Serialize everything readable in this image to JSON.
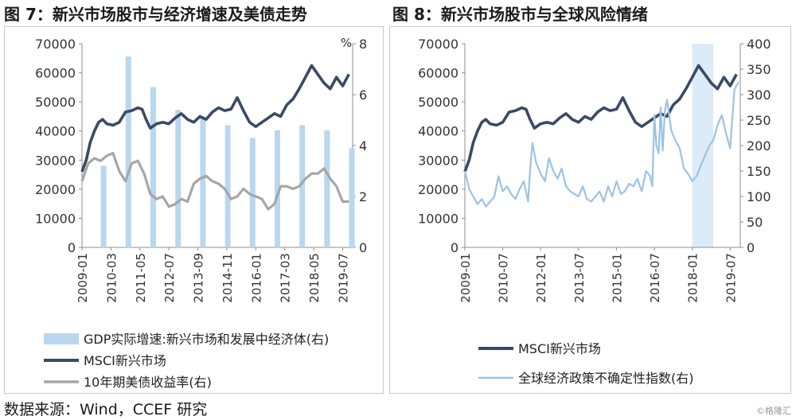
{
  "titles": {
    "fig7": "图 7：新兴市场股市与经济增速及美债走势",
    "fig8": "图 8：新兴市场股市与全球风险情绪"
  },
  "footer": {
    "source": "数据来源：Wind，CCEF 研究",
    "watermark": "©格隆汇"
  },
  "colors": {
    "msci": "#3a4a66",
    "gdp": "#b9d7ef",
    "treasury": "#a6a6a6",
    "epu": "#9cc3e4",
    "shade": "#dcebf8"
  },
  "chart_data": [
    {
      "type": "line",
      "id": "fig7",
      "x_ticks": [
        "2009-01",
        "2010-03",
        "2011-05",
        "2012-07",
        "2013-09",
        "2014-11",
        "2016-01",
        "2017-03",
        "2018-05",
        "2019-07"
      ],
      "y_left": {
        "ticks": [
          "0",
          "10000",
          "20000",
          "30000",
          "40000",
          "50000",
          "60000",
          "70000"
        ],
        "range": [
          0,
          70000
        ]
      },
      "y_right": {
        "unit": "%",
        "ticks": [
          "0",
          "2",
          "4",
          "6",
          "8"
        ],
        "range": [
          0,
          8
        ]
      },
      "series": [
        {
          "name": "GDP实际增速:新兴市场和发展中经济体(右)",
          "kind": "bar",
          "axis": "right",
          "x": [
            2009.87,
            2010.87,
            2011.87,
            2012.87,
            2013.87,
            2014.87,
            2015.87,
            2016.87,
            2017.87,
            2018.87,
            2019.87
          ],
          "y": [
            3.2,
            7.5,
            6.3,
            5.4,
            5.1,
            4.8,
            4.3,
            4.6,
            4.8,
            4.6,
            3.9
          ]
        },
        {
          "name": "MSCI新兴市场",
          "kind": "line",
          "axis": "left",
          "x": [
            2009.0,
            2009.17,
            2009.33,
            2009.5,
            2009.67,
            2009.83,
            2010.0,
            2010.25,
            2010.5,
            2010.75,
            2011.0,
            2011.25,
            2011.42,
            2011.58,
            2011.75,
            2012.0,
            2012.25,
            2012.5,
            2012.75,
            2013.0,
            2013.25,
            2013.5,
            2013.75,
            2014.0,
            2014.25,
            2014.5,
            2014.75,
            2015.0,
            2015.25,
            2015.5,
            2015.75,
            2016.0,
            2016.25,
            2016.5,
            2016.75,
            2017.0,
            2017.25,
            2017.5,
            2017.75,
            2018.0,
            2018.25,
            2018.5,
            2018.75,
            2019.0,
            2019.25,
            2019.5,
            2019.75
          ],
          "y": [
            26000,
            30000,
            36000,
            40000,
            43000,
            44000,
            42500,
            42000,
            43000,
            46500,
            47000,
            48000,
            47500,
            44000,
            41000,
            42500,
            43000,
            42500,
            44500,
            46000,
            44000,
            43000,
            45000,
            44000,
            46500,
            48000,
            47000,
            47500,
            51500,
            47000,
            43000,
            41500,
            43000,
            44500,
            46000,
            45000,
            49000,
            51000,
            54500,
            58500,
            62500,
            59500,
            56500,
            54500,
            58500,
            55500,
            59500
          ]
        },
        {
          "name": "10年期美债收益率(右)",
          "kind": "line",
          "axis": "right",
          "x": [
            2009.0,
            2009.25,
            2009.5,
            2009.75,
            2010.0,
            2010.25,
            2010.5,
            2010.75,
            2011.0,
            2011.25,
            2011.5,
            2011.75,
            2012.0,
            2012.25,
            2012.5,
            2012.75,
            2013.0,
            2013.25,
            2013.5,
            2013.75,
            2014.0,
            2014.25,
            2014.5,
            2014.75,
            2015.0,
            2015.25,
            2015.5,
            2015.75,
            2016.0,
            2016.25,
            2016.5,
            2016.75,
            2017.0,
            2017.25,
            2017.5,
            2017.75,
            2018.0,
            2018.25,
            2018.5,
            2018.75,
            2019.0,
            2019.25,
            2019.5,
            2019.75
          ],
          "y": [
            2.6,
            3.3,
            3.5,
            3.4,
            3.6,
            3.7,
            3.0,
            2.6,
            3.3,
            3.4,
            2.9,
            2.1,
            1.9,
            2.0,
            1.6,
            1.7,
            1.9,
            1.8,
            2.5,
            2.7,
            2.8,
            2.6,
            2.5,
            2.3,
            1.9,
            2.0,
            2.3,
            2.1,
            2.0,
            1.9,
            1.5,
            1.7,
            2.4,
            2.4,
            2.3,
            2.4,
            2.7,
            2.9,
            2.9,
            3.1,
            2.7,
            2.4,
            1.8,
            1.8
          ]
        }
      ]
    },
    {
      "type": "line",
      "id": "fig8",
      "x_ticks": [
        "2009-01",
        "2010-07",
        "2012-01",
        "2013-07",
        "2015-01",
        "2016-07",
        "2018-01",
        "2019-07"
      ],
      "y_left": {
        "ticks": [
          "0",
          "10000",
          "20000",
          "30000",
          "40000",
          "50000",
          "60000",
          "70000"
        ],
        "range": [
          0,
          70000
        ]
      },
      "y_right": {
        "ticks": [
          "0",
          "50",
          "100",
          "150",
          "200",
          "250",
          "300",
          "350",
          "400"
        ],
        "range": [
          0,
          400
        ]
      },
      "shaded_region": {
        "x": [
          2018.0,
          2018.83
        ]
      },
      "series": [
        {
          "name": "MSCI新兴市场",
          "kind": "line",
          "axis": "left",
          "x": [
            2009.0,
            2009.17,
            2009.33,
            2009.5,
            2009.67,
            2009.83,
            2010.0,
            2010.25,
            2010.5,
            2010.75,
            2011.0,
            2011.25,
            2011.42,
            2011.58,
            2011.75,
            2012.0,
            2012.25,
            2012.5,
            2012.75,
            2013.0,
            2013.25,
            2013.5,
            2013.75,
            2014.0,
            2014.25,
            2014.5,
            2014.75,
            2015.0,
            2015.25,
            2015.5,
            2015.75,
            2016.0,
            2016.25,
            2016.5,
            2016.75,
            2017.0,
            2017.25,
            2017.5,
            2017.75,
            2018.0,
            2018.25,
            2018.5,
            2018.75,
            2019.0,
            2019.25,
            2019.5,
            2019.75
          ],
          "y": [
            26000,
            30000,
            36000,
            40000,
            43000,
            44000,
            42500,
            42000,
            43000,
            46500,
            47000,
            48000,
            47500,
            44000,
            41000,
            42500,
            43000,
            42500,
            44500,
            46000,
            44000,
            43000,
            45000,
            44000,
            46500,
            48000,
            47000,
            47500,
            51500,
            47000,
            43000,
            41500,
            43000,
            44500,
            46000,
            45000,
            49000,
            51000,
            54500,
            58500,
            62500,
            59500,
            56500,
            54500,
            58500,
            55500,
            59500
          ]
        },
        {
          "name": "全球经济政策不确定性指数(右)",
          "kind": "line",
          "axis": "right",
          "x": [
            2009.0,
            2009.17,
            2009.33,
            2009.5,
            2009.67,
            2009.83,
            2010.0,
            2010.17,
            2010.33,
            2010.5,
            2010.67,
            2010.83,
            2011.0,
            2011.17,
            2011.33,
            2011.5,
            2011.58,
            2011.67,
            2011.83,
            2012.0,
            2012.17,
            2012.33,
            2012.5,
            2012.67,
            2012.83,
            2013.0,
            2013.17,
            2013.33,
            2013.5,
            2013.67,
            2013.83,
            2014.0,
            2014.17,
            2014.33,
            2014.5,
            2014.67,
            2014.83,
            2015.0,
            2015.17,
            2015.33,
            2015.5,
            2015.67,
            2015.83,
            2016.0,
            2016.17,
            2016.33,
            2016.42,
            2016.5,
            2016.58,
            2016.67,
            2016.75,
            2016.83,
            2016.92,
            2017.0,
            2017.17,
            2017.33,
            2017.5,
            2017.67,
            2017.83,
            2018.0,
            2018.17,
            2018.33,
            2018.5,
            2018.67,
            2018.83,
            2019.0,
            2019.17,
            2019.33,
            2019.5,
            2019.67,
            2019.83
          ],
          "y": [
            150,
            115,
            100,
            85,
            95,
            80,
            90,
            100,
            140,
            110,
            120,
            105,
            95,
            115,
            130,
            90,
            150,
            205,
            165,
            145,
            130,
            175,
            150,
            135,
            155,
            120,
            110,
            105,
            100,
            120,
            95,
            90,
            100,
            110,
            90,
            120,
            100,
            130,
            105,
            110,
            125,
            120,
            135,
            110,
            150,
            140,
            120,
            260,
            200,
            185,
            275,
            190,
            270,
            290,
            230,
            210,
            195,
            155,
            145,
            130,
            140,
            160,
            180,
            200,
            210,
            240,
            260,
            225,
            195,
            310,
            325
          ]
        }
      ]
    }
  ]
}
